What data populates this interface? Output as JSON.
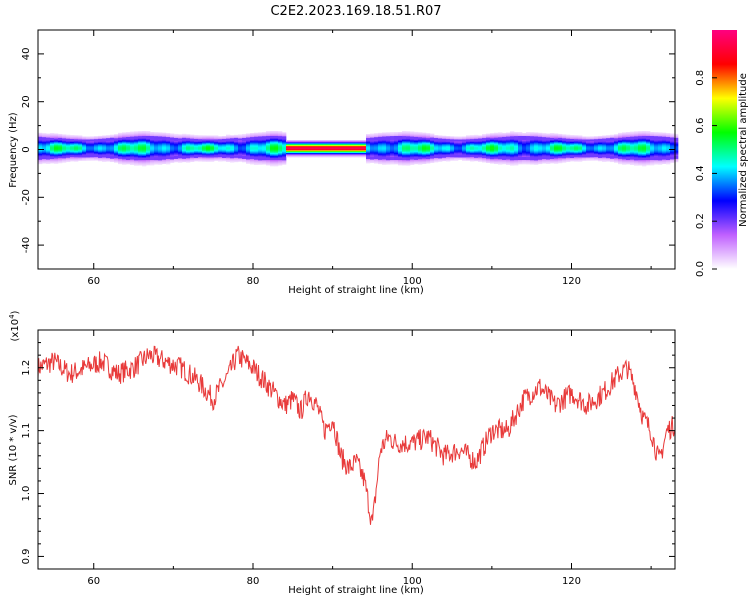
{
  "figure": {
    "title": "C2E2.2023.169.18.51.R07"
  },
  "chart_data": [
    {
      "type": "heatmap",
      "xlabel": "Height of straight line (km)",
      "ylabel": "Frequency (Hz)",
      "xlim": [
        53,
        133
      ],
      "ylim": [
        -50,
        50
      ],
      "xticks": [
        "60",
        "80",
        "100",
        "120"
      ],
      "yticks": [
        "-40",
        "-20",
        "0",
        "20",
        "40"
      ],
      "colorbar": {
        "label": "Normalized spectral amplitude",
        "range": [
          0,
          1
        ],
        "ticks": [
          "0.0",
          "0.2",
          "0.4",
          "0.6",
          "0.8"
        ],
        "colors": [
          "#ffffff",
          "#c060ff",
          "#0000ff",
          "#00ffff",
          "#00ff00",
          "#ffff00",
          "#ff0000",
          "#ff0080"
        ]
      },
      "band": {
        "center_hz": 0.5,
        "halfwidth_hz": 3.5,
        "peak_region_km": [
          84,
          94
        ],
        "peak_amplitude": 0.95,
        "background_amplitude": 0.45
      }
    },
    {
      "type": "line",
      "xlabel": "Height of straight line (km)",
      "ylabel": "SNR (10 * v/v)",
      "scale_label": "(x10",
      "scale_exponent": "4",
      "scale_suffix": ")",
      "xlim": [
        53,
        133
      ],
      "ylim": [
        0.88,
        1.26
      ],
      "xticks": [
        "60",
        "80",
        "100",
        "120"
      ],
      "yticks": [
        "0.9",
        "1.0",
        "1.1",
        "1.2"
      ],
      "line_color": "#e83a3a",
      "series": [
        {
          "x": [
            53,
            55,
            57,
            59,
            61,
            63,
            65,
            67,
            69,
            71,
            73,
            75,
            77,
            78,
            80,
            82,
            84,
            85,
            86,
            87,
            88,
            89,
            90,
            91,
            92,
            93,
            94,
            95,
            96,
            97,
            98,
            100,
            102,
            104,
            106,
            108,
            110,
            112,
            114,
            116,
            118,
            120,
            122,
            124,
            126,
            127,
            128,
            129,
            130,
            131,
            132,
            133
          ],
          "values": [
            1.2,
            1.21,
            1.19,
            1.2,
            1.21,
            1.19,
            1.2,
            1.22,
            1.21,
            1.2,
            1.18,
            1.15,
            1.19,
            1.22,
            1.2,
            1.17,
            1.14,
            1.15,
            1.13,
            1.16,
            1.14,
            1.1,
            1.12,
            1.06,
            1.04,
            1.05,
            1.02,
            0.95,
            1.07,
            1.09,
            1.08,
            1.08,
            1.09,
            1.06,
            1.07,
            1.05,
            1.1,
            1.1,
            1.15,
            1.17,
            1.14,
            1.16,
            1.14,
            1.16,
            1.19,
            1.2,
            1.17,
            1.12,
            1.1,
            1.05,
            1.1,
            1.11
          ]
        }
      ]
    }
  ]
}
